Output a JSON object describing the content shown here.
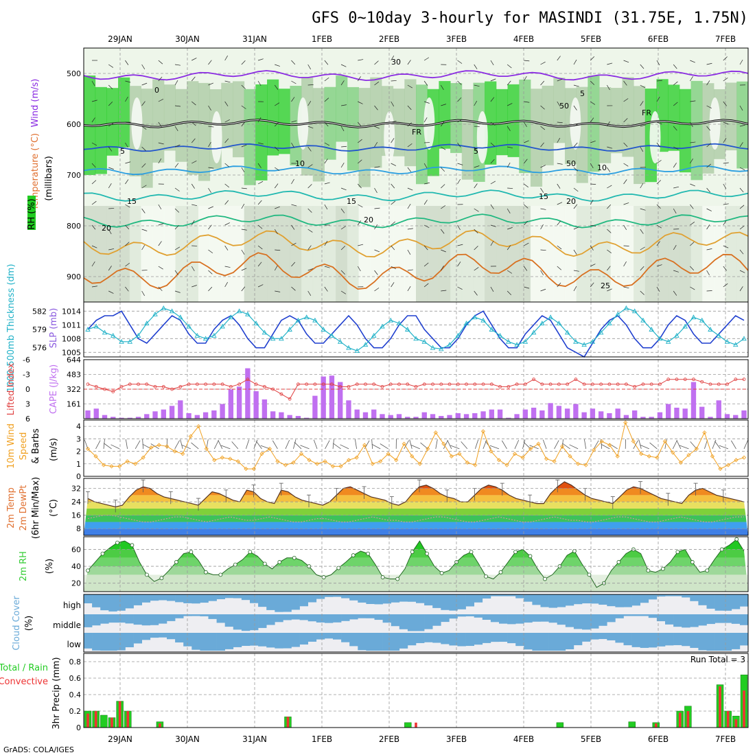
{
  "title": "GFS 0~10day 3-hourly for MASINDI (31.75E, 1.75N)",
  "footer": "GrADS: COLA/IGES",
  "dates": [
    "29JAN",
    "30JAN",
    "31JAN",
    "1FEB",
    "2FEB",
    "3FEB",
    "4FEB",
    "5FEB",
    "6FEB",
    "7FEB"
  ],
  "colors": {
    "rh_green": "#22cc22",
    "temp_text": "#e07030",
    "wind_text": "#8a2be2",
    "slp": "#1f3fcf",
    "thick": "#22b2c8",
    "cape": "#c070f0",
    "li": "#e04040",
    "wind10": "#f0a020",
    "rh2m": "#33cc33",
    "cloud": "#6aaad8",
    "precip_total": "#22cc22",
    "precip_conv": "#ee3333"
  },
  "panels": {
    "upper": {
      "labels": {
        "rh": "RH (%)",
        "temp": "Temperature (°C)",
        "wind": "Wind (m/s)",
        "unit": "(millibars)"
      },
      "yticks": [
        "500",
        "600",
        "700",
        "800",
        "900"
      ],
      "contour_labels": [
        "0",
        "5",
        "5",
        "5",
        "10",
        "10",
        "15",
        "15",
        "15",
        "20",
        "20",
        "20",
        "FR",
        "FR",
        "30",
        "50",
        "50",
        "25"
      ]
    },
    "slp": {
      "label_left": "1000-500mb Thickness (dm)",
      "label_right": "SLP (mb)",
      "left_ticks": [
        "582",
        "579",
        "576"
      ],
      "right_ticks": [
        "1014",
        "1011",
        "1008",
        "1005"
      ]
    },
    "cape": {
      "label_left": "Lifted Index",
      "label_right": "CAPE (J/kg)",
      "left_ticks": [
        "-6",
        "-3",
        "0",
        "3",
        "6"
      ],
      "right_ticks": [
        "644",
        "483",
        "322",
        "161"
      ]
    },
    "wind10": {
      "label": "10m Wind Speed & Barbs",
      "unit": "(m/s)",
      "yticks": [
        "4",
        "3",
        "2",
        "1",
        "0"
      ]
    },
    "temp2m": {
      "label": "2m Temp 2m DewPt (6hr Min/Max)",
      "unit": "(°C)",
      "yticks": [
        "32",
        "24",
        "16",
        "8"
      ]
    },
    "rh2m": {
      "label": "2m RH",
      "unit": "(%)",
      "yticks": [
        "60",
        "40",
        "20"
      ]
    },
    "cloud": {
      "label": "Cloud Cover",
      "unit": "(%)",
      "levels": [
        "high",
        "middle",
        "low"
      ]
    },
    "precip": {
      "label_total": "Total / Rain",
      "label_conv": "Convective",
      "ylabel": "3hr Precip (mm)",
      "yticks": [
        "0.8",
        "0.6",
        "0.4",
        "0.2",
        "0"
      ],
      "run_total": "Run Total = 3"
    }
  },
  "chart_data": [
    {
      "type": "line",
      "name": "slp",
      "ylabel": "SLP (mb)",
      "ylim": [
        1004,
        1016
      ],
      "values": [
        1010,
        1012,
        1013,
        1013,
        1014,
        1011,
        1008,
        1007,
        1009,
        1011,
        1013,
        1012,
        1009,
        1007,
        1007,
        1010,
        1012,
        1013,
        1011,
        1008,
        1006,
        1006,
        1009,
        1012,
        1013,
        1012,
        1009,
        1007,
        1007,
        1009,
        1011,
        1013,
        1011,
        1008,
        1006,
        1006,
        1008,
        1011,
        1013,
        1013,
        1010,
        1008,
        1006,
        1006,
        1008,
        1011,
        1013,
        1014,
        1011,
        1008,
        1006,
        1006,
        1009,
        1011,
        1013,
        1012,
        1009,
        1006,
        1005,
        1004,
        1007,
        1010,
        1012,
        1013,
        1011,
        1008,
        1006,
        1006,
        1008,
        1011,
        1013,
        1012,
        1009,
        1007,
        1007,
        1009,
        1011,
        1013,
        1012
      ]
    },
    {
      "type": "line",
      "name": "thickness",
      "ylabel": "1000-500mb Thickness (dm)",
      "ylim": [
        574.5,
        583.5
      ],
      "values": [
        579,
        579.5,
        578.5,
        578,
        577,
        577,
        578,
        580,
        581.5,
        582.5,
        582,
        581,
        579.5,
        578,
        577.5,
        578,
        579.5,
        581,
        582,
        581.5,
        580,
        578.5,
        577.5,
        577.5,
        579,
        580.5,
        581,
        580.5,
        579,
        578,
        577,
        576,
        575.5,
        576.5,
        578,
        579.5,
        580.5,
        580,
        579,
        577.5,
        577,
        576,
        575.8,
        576.5,
        578,
        580,
        581,
        580.5,
        579,
        578,
        577,
        576.5,
        577,
        578.5,
        580,
        581,
        580,
        578.5,
        577,
        576.5,
        577,
        578.5,
        580,
        581.5,
        582.5,
        582,
        580.5,
        579,
        577.5,
        577,
        578,
        579.5,
        581,
        580.5,
        579,
        578,
        577,
        576.5,
        577.5
      ]
    },
    {
      "type": "bar",
      "name": "cape",
      "ylabel": "CAPE (J/kg)",
      "ylim": [
        0,
        644
      ],
      "values": [
        90,
        110,
        40,
        20,
        10,
        10,
        20,
        50,
        80,
        100,
        140,
        200,
        60,
        40,
        70,
        90,
        160,
        320,
        350,
        550,
        300,
        210,
        80,
        70,
        40,
        30,
        10,
        250,
        460,
        470,
        400,
        200,
        100,
        70,
        100,
        50,
        40,
        50,
        20,
        20,
        70,
        50,
        30,
        40,
        60,
        50,
        60,
        80,
        100,
        100,
        10,
        50,
        100,
        120,
        90,
        170,
        140,
        110,
        160,
        70,
        110,
        80,
        60,
        110,
        40,
        90,
        20,
        20,
        70,
        160,
        120,
        110,
        400,
        130,
        20,
        200,
        50,
        40,
        90
      ]
    },
    {
      "type": "line",
      "name": "lifted_index",
      "ylabel": "Lifted Index",
      "ylim": [
        -6,
        6
      ],
      "values": [
        -1,
        -0.5,
        0,
        0.5,
        -0.5,
        -1,
        -1,
        -1,
        -0.5,
        -0.5,
        0,
        -0.5,
        -1,
        -1,
        -1,
        -1,
        -1,
        -0.5,
        -1,
        -2,
        -1,
        -0.5,
        0,
        1,
        2,
        -1,
        -1,
        -1,
        -1,
        -1,
        -0.5,
        -0.5,
        -1,
        -1,
        -1,
        -0.5,
        -1,
        -1,
        -1,
        -0.5,
        -1,
        -1,
        -1,
        -1,
        -1,
        -1,
        -1,
        -1,
        -1,
        -0.5,
        -0.5,
        -1,
        -1,
        -2,
        -1,
        -1,
        -1,
        -1,
        -2,
        -1,
        -1,
        -1,
        -1,
        -1,
        -1,
        -0.5,
        -1,
        -1,
        -1,
        -2,
        -2,
        -2,
        -2,
        -1.5,
        -1,
        -1,
        -1,
        -2,
        -2
      ]
    },
    {
      "type": "line",
      "name": "wind10m",
      "ylabel": "(m/s)",
      "ylim": [
        0,
        4.5
      ],
      "values": [
        2.2,
        1.6,
        0.9,
        0.8,
        0.8,
        1.2,
        1.0,
        1.5,
        2.3,
        2.5,
        2.4,
        2.0,
        1.8,
        3.2,
        4.0,
        2.2,
        1.3,
        1.5,
        1.4,
        1.2,
        0.6,
        0.6,
        1.8,
        2.2,
        1.2,
        0.9,
        1.1,
        1.8,
        1.3,
        1.0,
        1.2,
        0.8,
        0.8,
        1.3,
        1.5,
        2.5,
        1.0,
        1.2,
        1.8,
        1.3,
        2.6,
        1.6,
        1.0,
        2.2,
        3.5,
        2.6,
        1.6,
        1.8,
        1.1,
        0.9,
        3.6,
        2.0,
        1.3,
        0.9,
        1.8,
        1.5,
        2.2,
        2.6,
        1.4,
        1.2,
        2.4,
        1.6,
        1.0,
        0.9,
        2.1,
        2.8,
        2.5,
        1.6,
        4.3,
        2.8,
        1.8,
        1.6,
        1.5,
        2.8,
        1.9,
        1.1,
        1.7,
        2.2,
        3.5,
        1.6,
        0.6,
        0.9,
        1.3,
        1.5
      ]
    },
    {
      "type": "line",
      "name": "temp2m",
      "ylabel": "(°C)",
      "ylim": [
        4,
        38
      ],
      "values": [
        26,
        24,
        23,
        22,
        21,
        22,
        27,
        31,
        33,
        32,
        29,
        27,
        26,
        25,
        24,
        23,
        22,
        26,
        30,
        29,
        27,
        25,
        24,
        31,
        30,
        26,
        24,
        23,
        31,
        30,
        27,
        25,
        24,
        23,
        22,
        24,
        28,
        32,
        33,
        31,
        29,
        27,
        26,
        25,
        23,
        22,
        24,
        29,
        33,
        34,
        32,
        29,
        27,
        26,
        24,
        24,
        28,
        32,
        34,
        33,
        31,
        28,
        26,
        25,
        24,
        23,
        23,
        29,
        33,
        36,
        34,
        31,
        28,
        26,
        25,
        24,
        23,
        27,
        31,
        33,
        32,
        30,
        28,
        26,
        25,
        24,
        23,
        28,
        31,
        32,
        30,
        28,
        27,
        26,
        25,
        24
      ]
    },
    {
      "type": "line",
      "name": "dewpoint2m",
      "ylabel": "(°C)",
      "ylim": [
        4,
        38
      ],
      "values": [
        14,
        15,
        16,
        16,
        15,
        14,
        13,
        12,
        12,
        13,
        14,
        15,
        15,
        14,
        13,
        12,
        13,
        14,
        15,
        14,
        13,
        13,
        14,
        15,
        14,
        13,
        12,
        12,
        13,
        14,
        14,
        13,
        12,
        12,
        13,
        14,
        15,
        14,
        13,
        13,
        12,
        12,
        13,
        14,
        15,
        15,
        14,
        13,
        12,
        12,
        13,
        14,
        15,
        14,
        13,
        12,
        12,
        13,
        14,
        15,
        14,
        13,
        13,
        12,
        12,
        13,
        14,
        15,
        15,
        14,
        13,
        12,
        12,
        13,
        14,
        15,
        14,
        13,
        12,
        12,
        13,
        14,
        15,
        15
      ]
    },
    {
      "type": "area",
      "name": "rh2m",
      "ylabel": "(%)",
      "ylim": [
        10,
        75
      ],
      "values": [
        35,
        45,
        55,
        62,
        68,
        70,
        65,
        45,
        30,
        22,
        26,
        35,
        45,
        55,
        57,
        47,
        33,
        30,
        30,
        37,
        42,
        48,
        57,
        52,
        43,
        37,
        45,
        50,
        50,
        47,
        40,
        30,
        27,
        30,
        38,
        45,
        53,
        58,
        55,
        42,
        27,
        25,
        25,
        37,
        57,
        70,
        55,
        40,
        32,
        35,
        45,
        53,
        57,
        43,
        28,
        25,
        33,
        45,
        57,
        60,
        52,
        37,
        25,
        30,
        40,
        53,
        58,
        43,
        30,
        15,
        20,
        35,
        45,
        55,
        60,
        55,
        35,
        33,
        37,
        45,
        57,
        60,
        45,
        33,
        35,
        48,
        60,
        65,
        72,
        58
      ]
    },
    {
      "type": "bar",
      "name": "precip_3hr",
      "ylabel": "3hr Precip (mm)",
      "ylim": [
        0,
        0.9
      ],
      "series": [
        {
          "name": "Total / Rain",
          "values": [
            0.2,
            0.2,
            0.15,
            0.12,
            0.32,
            0.2,
            0,
            0,
            0,
            0.07,
            0,
            0,
            0,
            0,
            0,
            0,
            0,
            0,
            0,
            0,
            0,
            0,
            0,
            0,
            0,
            0.13,
            0,
            0,
            0,
            0,
            0,
            0,
            0,
            0,
            0,
            0,
            0,
            0,
            0,
            0,
            0.06,
            0,
            0,
            0,
            0,
            0,
            0,
            0,
            0,
            0,
            0,
            0,
            0,
            0,
            0,
            0,
            0,
            0,
            0,
            0.06,
            0,
            0,
            0,
            0,
            0,
            0,
            0,
            0,
            0.07,
            0,
            0,
            0.06,
            0,
            0,
            0.2,
            0.26,
            0,
            0,
            0,
            0.52,
            0.2,
            0.14,
            0.64
          ]
        },
        {
          "name": "Convective",
          "values": [
            0.17,
            0.2,
            0,
            0.12,
            0.32,
            0.2,
            0,
            0,
            0,
            0.05,
            0,
            0,
            0,
            0,
            0,
            0,
            0,
            0,
            0,
            0,
            0,
            0,
            0,
            0,
            0,
            0.13,
            0,
            0,
            0,
            0,
            0,
            0,
            0,
            0,
            0,
            0,
            0,
            0,
            0,
            0,
            0,
            0.06,
            0,
            0,
            0,
            0,
            0,
            0,
            0,
            0,
            0,
            0,
            0,
            0,
            0,
            0,
            0,
            0,
            0,
            0,
            0,
            0,
            0,
            0,
            0,
            0,
            0,
            0,
            0,
            0,
            0,
            0.05,
            0,
            0,
            0.18,
            0.2,
            0,
            0,
            0,
            0.5,
            0.2,
            0.1,
            0.45
          ]
        }
      ]
    }
  ]
}
